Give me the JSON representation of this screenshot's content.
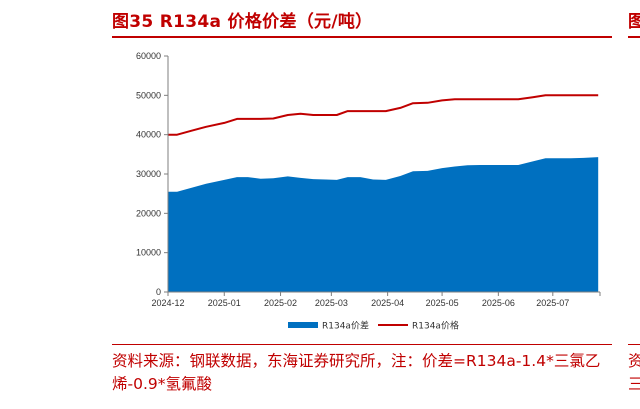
{
  "figure": {
    "title": "图35  R134a 价格价差（元/吨）",
    "source": "资料来源：钢联数据，东海证券研究所，注：价差=R134a-1.4*三氯乙烯-0.9*氢氟酸",
    "edge_title_glyph": "图",
    "edge_source_lines": [
      "资",
      "三"
    ]
  },
  "chart_data": {
    "type": "area",
    "title": "",
    "xlabel": "",
    "ylabel": "",
    "ylim": [
      0,
      60000
    ],
    "yticks": [
      0,
      10000,
      20000,
      30000,
      40000,
      50000,
      60000
    ],
    "xlim": [
      "2024-12-01",
      "2025-07-27"
    ],
    "xticks": [
      "2024-12",
      "2025-01",
      "2025-02",
      "2025-03",
      "2025-04",
      "2025-05",
      "2025-06",
      "2025-07"
    ],
    "grid": false,
    "legend_position": "bottom",
    "series": [
      {
        "name": "R134a价差",
        "kind": "area",
        "color": "#0070c0",
        "points": [
          [
            "2024-12-01",
            25500
          ],
          [
            "2024-12-06",
            25500
          ],
          [
            "2024-12-14",
            26500
          ],
          [
            "2024-12-22",
            27500
          ],
          [
            "2025-01-01",
            28500
          ],
          [
            "2025-01-08",
            29200
          ],
          [
            "2025-01-14",
            29200
          ],
          [
            "2025-01-21",
            28800
          ],
          [
            "2025-01-28",
            28900
          ],
          [
            "2025-02-05",
            29400
          ],
          [
            "2025-02-12",
            29000
          ],
          [
            "2025-02-19",
            28700
          ],
          [
            "2025-02-26",
            28600
          ],
          [
            "2025-03-04",
            28500
          ],
          [
            "2025-03-10",
            29200
          ],
          [
            "2025-03-17",
            29200
          ],
          [
            "2025-03-24",
            28600
          ],
          [
            "2025-03-31",
            28500
          ],
          [
            "2025-04-08",
            29500
          ],
          [
            "2025-04-15",
            30700
          ],
          [
            "2025-04-23",
            30800
          ],
          [
            "2025-05-01",
            31500
          ],
          [
            "2025-05-08",
            31900
          ],
          [
            "2025-05-15",
            32200
          ],
          [
            "2025-05-22",
            32300
          ],
          [
            "2025-05-29",
            32300
          ],
          [
            "2025-06-05",
            32300
          ],
          [
            "2025-06-12",
            32300
          ],
          [
            "2025-06-20",
            33200
          ],
          [
            "2025-06-27",
            34000
          ],
          [
            "2025-07-04",
            34000
          ],
          [
            "2025-07-11",
            34000
          ],
          [
            "2025-07-18",
            34100
          ],
          [
            "2025-07-26",
            34300
          ]
        ]
      },
      {
        "name": "R134a价格",
        "kind": "line",
        "color": "#c00000",
        "points": [
          [
            "2024-12-01",
            40000
          ],
          [
            "2024-12-06",
            40000
          ],
          [
            "2024-12-14",
            41000
          ],
          [
            "2024-12-22",
            42000
          ],
          [
            "2025-01-01",
            43000
          ],
          [
            "2025-01-08",
            44000
          ],
          [
            "2025-01-21",
            44000
          ],
          [
            "2025-01-28",
            44100
          ],
          [
            "2025-02-05",
            45000
          ],
          [
            "2025-02-12",
            45300
          ],
          [
            "2025-02-19",
            45000
          ],
          [
            "2025-03-04",
            45000
          ],
          [
            "2025-03-10",
            46000
          ],
          [
            "2025-03-31",
            46000
          ],
          [
            "2025-04-08",
            46800
          ],
          [
            "2025-04-15",
            48000
          ],
          [
            "2025-04-23",
            48100
          ],
          [
            "2025-05-01",
            48700
          ],
          [
            "2025-05-08",
            49000
          ],
          [
            "2025-06-12",
            49000
          ],
          [
            "2025-06-20",
            49500
          ],
          [
            "2025-06-27",
            50000
          ],
          [
            "2025-07-26",
            50000
          ]
        ]
      }
    ]
  }
}
